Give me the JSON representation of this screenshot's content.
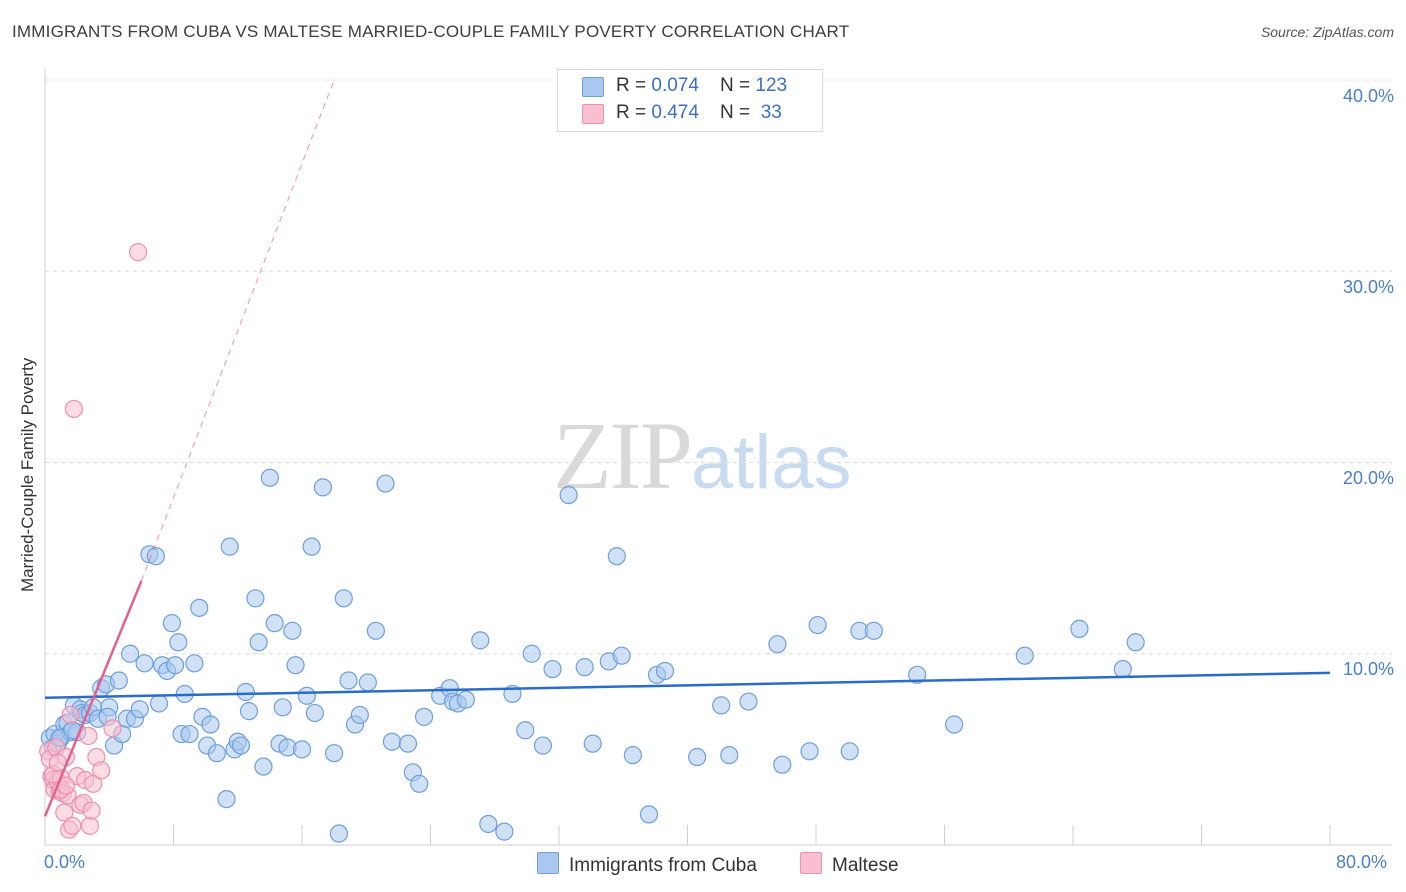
{
  "header": {
    "title": "IMMIGRANTS FROM CUBA VS MALTESE MARRIED-COUPLE FAMILY POVERTY CORRELATION CHART",
    "source": "Source: ZipAtlas.com"
  },
  "watermark": {
    "zip": "ZIP",
    "atlas": "atlas"
  },
  "legend": {
    "rows": [
      {
        "r_label": "R = ",
        "r_value": "0.074",
        "n_label": "N = ",
        "n_value": "123"
      },
      {
        "r_label": "R = ",
        "r_value": "0.474",
        "n_label": "N = ",
        "n_value": " 33"
      }
    ],
    "bottom": [
      "Immigrants from Cuba",
      "Maltese"
    ]
  },
  "colors": {
    "cuba_fill": "#aac8ef",
    "cuba_stroke": "#6e9fdc",
    "cuba_line": "#2a6cc9",
    "maltese_fill": "#f7bfd0",
    "maltese_stroke": "#ee8fad",
    "maltese_line": "#e4608e",
    "grid": "#dcdcdc",
    "tick_text": "#4a7fc9"
  },
  "chart_data": {
    "type": "scatter",
    "title": "IMMIGRANTS FROM CUBA VS MALTESE MARRIED-COUPLE FAMILY POVERTY CORRELATION CHART",
    "xlabel": "",
    "ylabel": "Married-Couple Family Poverty",
    "xlim": [
      0,
      80
    ],
    "ylim": [
      0,
      40
    ],
    "x_tick_labels": [
      "0.0%",
      "80.0%"
    ],
    "y_tick_labels": [
      "10.0%",
      "20.0%",
      "30.0%",
      "40.0%"
    ],
    "y_ticks": [
      10,
      20,
      30,
      40
    ],
    "series": [
      {
        "name": "Immigrants from Cuba",
        "R": 0.074,
        "N": 123,
        "trend": {
          "x": [
            0,
            80
          ],
          "y": [
            7.7,
            9.0
          ],
          "style": "solid"
        },
        "points": [
          [
            0.3,
            5.6
          ],
          [
            0.5,
            5.1
          ],
          [
            0.6,
            5.8
          ],
          [
            0.8,
            5.3
          ],
          [
            1.0,
            5.6
          ],
          [
            1.2,
            6.3
          ],
          [
            1.4,
            6.4
          ],
          [
            1.6,
            5.9
          ],
          [
            1.8,
            7.3
          ],
          [
            2.0,
            5.9
          ],
          [
            2.2,
            7.1
          ],
          [
            2.3,
            6.9
          ],
          [
            2.5,
            6.8
          ],
          [
            2.8,
            6.9
          ],
          [
            3.0,
            7.2
          ],
          [
            3.3,
            6.6
          ],
          [
            3.5,
            8.2
          ],
          [
            3.8,
            8.4
          ],
          [
            4.0,
            7.2
          ],
          [
            4.3,
            5.2
          ],
          [
            4.6,
            8.6
          ],
          [
            4.8,
            5.8
          ],
          [
            5.1,
            6.6
          ],
          [
            5.3,
            10.0
          ],
          [
            5.6,
            6.6
          ],
          [
            5.9,
            7.1
          ],
          [
            6.2,
            9.5
          ],
          [
            6.5,
            15.2
          ],
          [
            6.9,
            15.1
          ],
          [
            7.1,
            7.4
          ],
          [
            7.3,
            9.4
          ],
          [
            7.6,
            9.1
          ],
          [
            7.9,
            11.6
          ],
          [
            8.1,
            9.4
          ],
          [
            8.3,
            10.6
          ],
          [
            8.5,
            5.8
          ],
          [
            8.7,
            7.9
          ],
          [
            9.0,
            5.8
          ],
          [
            9.3,
            9.5
          ],
          [
            9.6,
            12.4
          ],
          [
            9.8,
            6.7
          ],
          [
            10.1,
            5.2
          ],
          [
            10.3,
            6.3
          ],
          [
            10.7,
            4.8
          ],
          [
            11.3,
            2.4
          ],
          [
            11.5,
            15.6
          ],
          [
            11.8,
            5.0
          ],
          [
            12.0,
            5.4
          ],
          [
            12.5,
            8.0
          ],
          [
            12.7,
            7.0
          ],
          [
            13.1,
            12.9
          ],
          [
            13.3,
            10.6
          ],
          [
            13.6,
            4.1
          ],
          [
            14.0,
            19.2
          ],
          [
            14.3,
            11.6
          ],
          [
            14.6,
            5.3
          ],
          [
            14.8,
            7.2
          ],
          [
            15.1,
            5.1
          ],
          [
            15.4,
            11.2
          ],
          [
            15.6,
            9.4
          ],
          [
            16.0,
            5.0
          ],
          [
            16.3,
            7.8
          ],
          [
            16.6,
            15.6
          ],
          [
            16.8,
            6.9
          ],
          [
            17.3,
            18.7
          ],
          [
            18.0,
            4.8
          ],
          [
            18.3,
            0.6
          ],
          [
            18.6,
            12.9
          ],
          [
            18.9,
            8.6
          ],
          [
            19.3,
            6.3
          ],
          [
            19.6,
            6.8
          ],
          [
            20.1,
            8.5
          ],
          [
            20.6,
            11.2
          ],
          [
            21.2,
            18.9
          ],
          [
            21.6,
            5.4
          ],
          [
            22.6,
            5.3
          ],
          [
            22.9,
            3.8
          ],
          [
            23.3,
            3.2
          ],
          [
            23.6,
            6.7
          ],
          [
            24.6,
            7.8
          ],
          [
            25.2,
            8.2
          ],
          [
            25.4,
            7.5
          ],
          [
            25.7,
            7.4
          ],
          [
            26.2,
            7.6
          ],
          [
            27.1,
            10.7
          ],
          [
            27.6,
            1.1
          ],
          [
            28.6,
            0.7
          ],
          [
            29.1,
            7.9
          ],
          [
            29.9,
            6.0
          ],
          [
            30.3,
            10.0
          ],
          [
            31.0,
            5.2
          ],
          [
            31.6,
            9.2
          ],
          [
            32.6,
            18.3
          ],
          [
            33.6,
            9.3
          ],
          [
            34.1,
            5.3
          ],
          [
            35.1,
            9.6
          ],
          [
            35.6,
            15.1
          ],
          [
            35.9,
            9.9
          ],
          [
            36.6,
            4.7
          ],
          [
            37.6,
            1.6
          ],
          [
            38.1,
            8.9
          ],
          [
            38.6,
            9.1
          ],
          [
            40.6,
            4.6
          ],
          [
            42.1,
            7.3
          ],
          [
            42.6,
            4.7
          ],
          [
            43.8,
            7.5
          ],
          [
            45.6,
            10.5
          ],
          [
            45.9,
            4.2
          ],
          [
            47.6,
            4.9
          ],
          [
            48.1,
            11.5
          ],
          [
            50.1,
            4.9
          ],
          [
            50.7,
            11.2
          ],
          [
            51.6,
            11.2
          ],
          [
            54.3,
            8.9
          ],
          [
            56.6,
            6.3
          ],
          [
            61.0,
            9.9
          ],
          [
            64.4,
            11.3
          ],
          [
            67.1,
            9.2
          ],
          [
            67.9,
            10.6
          ],
          [
            0.9,
            5.6
          ],
          [
            1.7,
            6.0
          ],
          [
            3.9,
            6.7
          ],
          [
            12.2,
            5.2
          ]
        ]
      },
      {
        "name": "Maltese",
        "R": 0.474,
        "N": 33,
        "trend": {
          "x": [
            0,
            6.0
          ],
          "y": [
            1.5,
            13.8
          ],
          "style": "solid",
          "extended_x": [
            6.0,
            18.0
          ],
          "extended_y": [
            13.8,
            40.0
          ],
          "extended_style": "dashed"
        },
        "points": [
          [
            0.2,
            4.9
          ],
          [
            0.3,
            4.5
          ],
          [
            0.4,
            3.6
          ],
          [
            0.5,
            3.4
          ],
          [
            0.6,
            2.9
          ],
          [
            0.7,
            5.1
          ],
          [
            0.8,
            3.3
          ],
          [
            0.9,
            2.8
          ],
          [
            1.0,
            3.5
          ],
          [
            1.1,
            2.7
          ],
          [
            1.2,
            1.7
          ],
          [
            1.3,
            4.6
          ],
          [
            1.4,
            2.6
          ],
          [
            1.5,
            0.8
          ],
          [
            1.6,
            6.8
          ],
          [
            1.7,
            1.0
          ],
          [
            1.8,
            22.8
          ],
          [
            2.0,
            3.6
          ],
          [
            2.2,
            2.1
          ],
          [
            2.4,
            2.2
          ],
          [
            2.5,
            3.4
          ],
          [
            2.7,
            5.7
          ],
          [
            2.8,
            1.0
          ],
          [
            2.9,
            1.8
          ],
          [
            3.0,
            3.2
          ],
          [
            3.2,
            4.6
          ],
          [
            3.5,
            3.9
          ],
          [
            4.2,
            6.1
          ],
          [
            5.8,
            31.0
          ],
          [
            0.5,
            3.7
          ],
          [
            1.0,
            2.9
          ],
          [
            1.3,
            3.1
          ],
          [
            0.8,
            4.3
          ]
        ]
      }
    ]
  }
}
